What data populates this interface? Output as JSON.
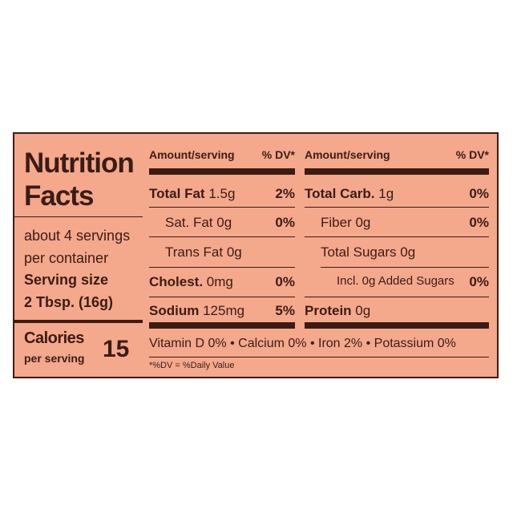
{
  "title": "Nutrition Facts",
  "servings": "about 4 servings per container",
  "serving_size": {
    "label": "Serving size",
    "value": "2 Tbsp. (16g)"
  },
  "calories": {
    "label": "Calories",
    "sublabel": "per serving",
    "value": "15"
  },
  "left_header": {
    "amount": "Amount/serving",
    "dv": "% DV*"
  },
  "right_header": {
    "amount": "Amount/serving",
    "dv": "% DV*"
  },
  "left_rows": [
    {
      "name": "Total Fat",
      "amount": "1.5g",
      "dv": "2%"
    },
    {
      "name": "Sat. Fat",
      "amount": "0g",
      "dv": "0%"
    },
    {
      "name": "Trans Fat",
      "amount": "0g"
    },
    {
      "name": "Cholest.",
      "amount": "0mg",
      "dv": "0%"
    },
    {
      "name": "Sodium",
      "amount": "125mg",
      "dv": "5%"
    }
  ],
  "right_rows": [
    {
      "name": "Total Carb.",
      "amount": "1g",
      "dv": "0%"
    },
    {
      "name": "Fiber",
      "amount": "0g",
      "dv": "0%"
    },
    {
      "name": "Total Sugars",
      "amount": "0g"
    },
    {
      "name": "Incl. 0g Added Sugars",
      "dv": "0%"
    },
    {
      "name": "Protein",
      "amount": "0g"
    }
  ],
  "vitamins": [
    "Vitamin D 0%",
    "Calcium 0%",
    "Iron 2%",
    "Potassium 0%"
  ],
  "footnote": "*%DV = %Daily Value"
}
